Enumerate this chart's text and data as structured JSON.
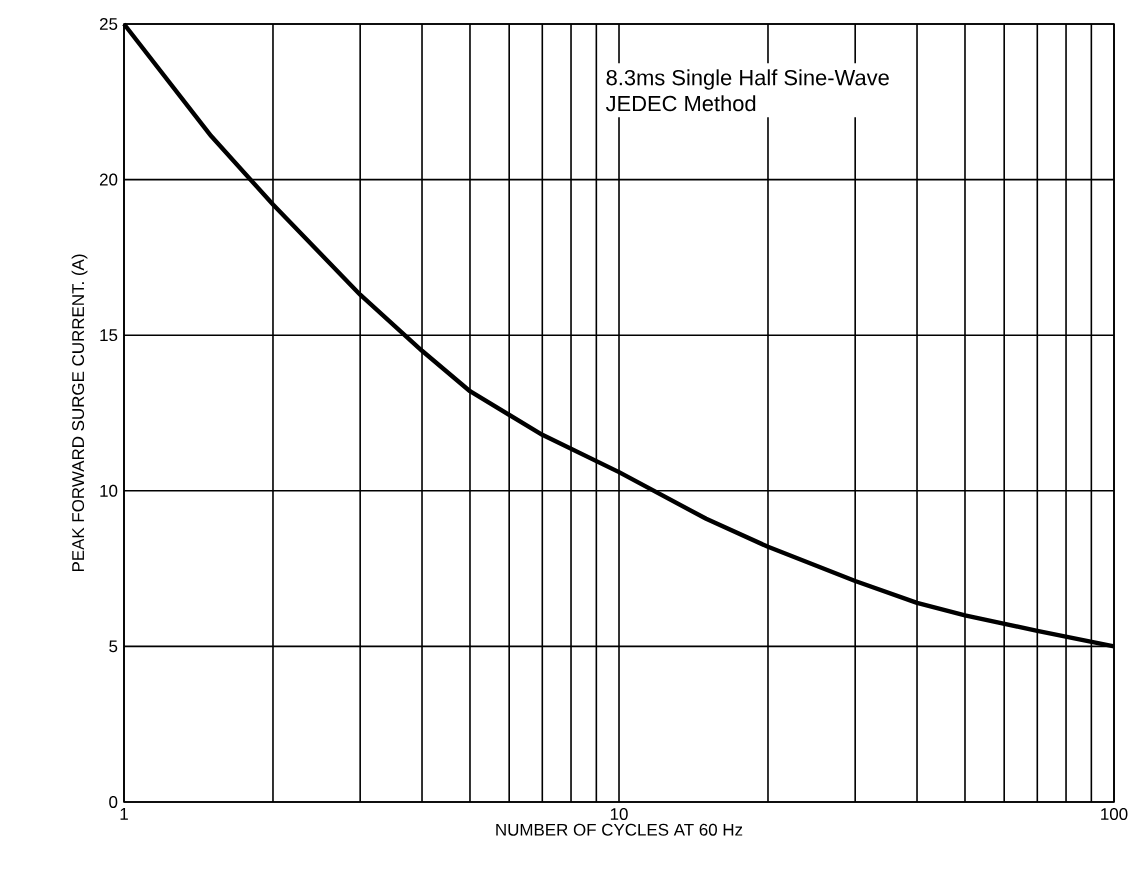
{
  "chart_data": {
    "type": "line",
    "xlabel": "NUMBER OF CYCLES AT 60 Hz",
    "ylabel": "PEAK FORWARD SURGE CURRENT. (A)",
    "log": "x",
    "x": [
      1,
      1.5,
      2,
      3,
      4,
      5,
      7,
      10,
      15,
      20,
      30,
      40,
      50,
      70,
      100
    ],
    "series": [
      {
        "color": "#000000",
        "values": [
          25,
          21.4,
          19.2,
          16.3,
          14.5,
          13.2,
          11.8,
          10.6,
          9.1,
          8.2,
          7.1,
          6.4,
          6.0,
          5.5,
          5.0
        ]
      }
    ],
    "xlim": [
      1,
      100
    ],
    "ylim": [
      0,
      25
    ],
    "xticks": [
      1,
      {
        "value": 2,
        "label": null
      },
      {
        "value": 3,
        "label": null
      },
      {
        "value": 4,
        "label": null
      },
      {
        "value": 5,
        "label": null
      },
      {
        "value": 6,
        "label": null
      },
      {
        "value": 7,
        "label": null
      },
      {
        "value": 8,
        "label": null
      },
      {
        "value": 9,
        "label": null
      },
      10,
      {
        "value": 20,
        "label": null
      },
      {
        "value": 30,
        "label": null
      },
      {
        "value": 40,
        "label": null
      },
      {
        "value": 50,
        "label": null
      },
      {
        "value": 60,
        "label": null
      },
      {
        "value": 70,
        "label": null
      },
      {
        "value": 80,
        "label": null
      },
      {
        "value": 90,
        "label": null
      },
      100
    ],
    "yticks": [
      0,
      5,
      10,
      15,
      20,
      25
    ],
    "grid": true,
    "marker": "none",
    "line_style": "solid",
    "annotations": [
      "8.3ms Single Half Sine-Wave",
      "JEDEC Method"
    ]
  }
}
